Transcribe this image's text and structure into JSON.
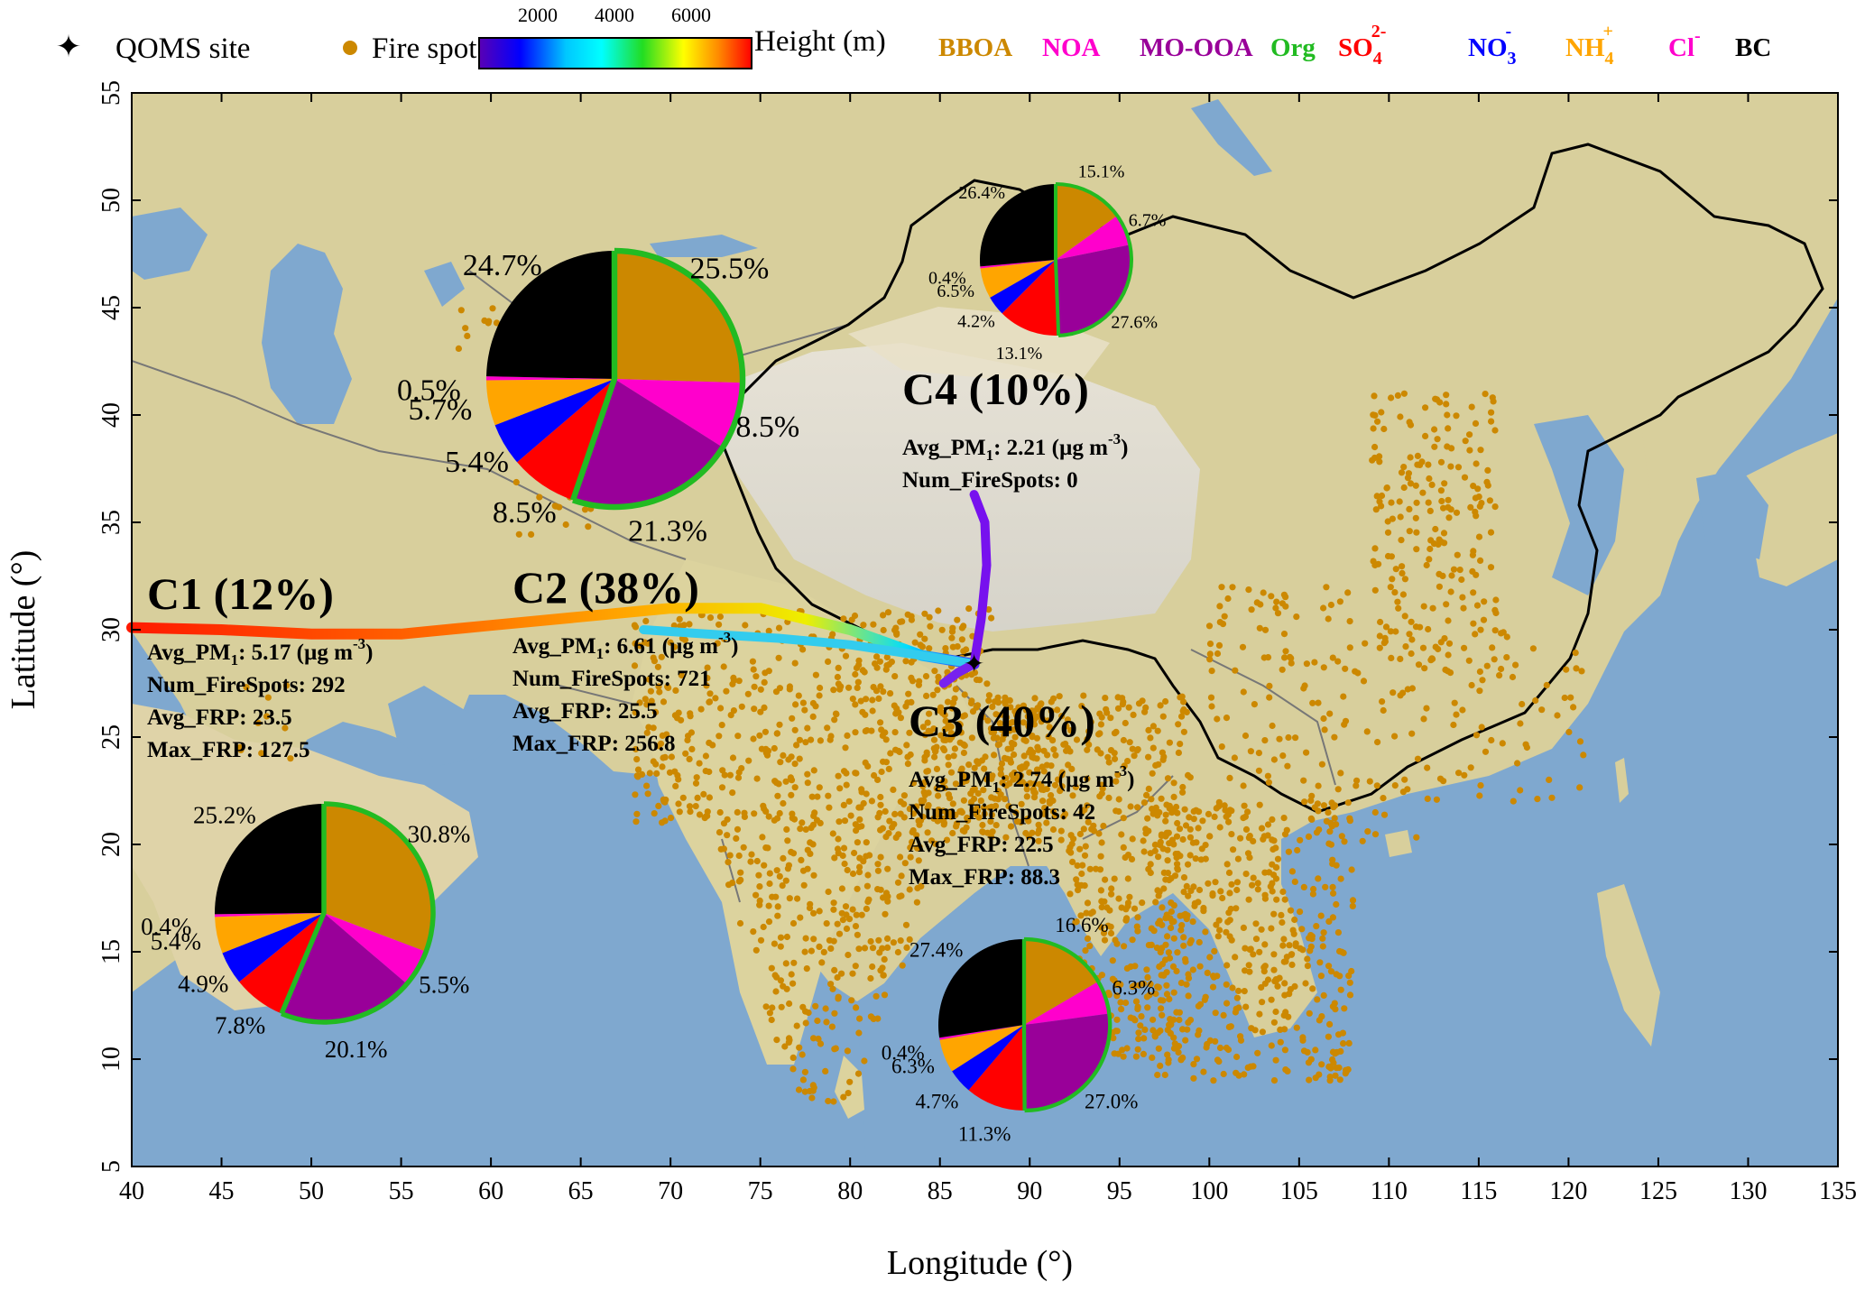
{
  "legend": {
    "site_label": "QOMS site",
    "fire_label": "Fire spot",
    "colorbar_ticks": [
      "2000",
      "4000",
      "6000"
    ],
    "colorbar_title": "Height (m)",
    "species": [
      {
        "label": "BBOA",
        "sup": "",
        "sub": "",
        "color": "#CC8800"
      },
      {
        "label": "NOA",
        "sup": "",
        "sub": "",
        "color": "#FF00CC"
      },
      {
        "label": "MO-OOA",
        "sup": "",
        "sub": "",
        "color": "#990099"
      },
      {
        "label": "Org",
        "sup": "",
        "sub": "",
        "color": "#22BB22"
      },
      {
        "label": "SO",
        "sub": "4",
        "sup": "2-",
        "color": "#FF0000"
      },
      {
        "label": "NO",
        "sub": "3",
        "sup": "-",
        "color": "#0000FF"
      },
      {
        "label": "NH",
        "sub": "4",
        "sup": "+",
        "color": "#FFA500"
      },
      {
        "label": "Cl",
        "sub": "",
        "sup": "-",
        "color": "#FF00CC"
      },
      {
        "label": "BC",
        "sub": "",
        "sup": "",
        "color": "#000000"
      }
    ]
  },
  "axes": {
    "xlabel": "Longitude (°)",
    "ylabel": "Latitude (°)",
    "xlim": [
      40,
      135
    ],
    "ylim": [
      5,
      55
    ],
    "xticks": [
      40,
      45,
      50,
      55,
      60,
      65,
      70,
      75,
      80,
      85,
      90,
      95,
      100,
      105,
      110,
      115,
      120,
      125,
      130,
      135
    ],
    "yticks": [
      5,
      10,
      15,
      20,
      25,
      30,
      35,
      40,
      45,
      50,
      55
    ]
  },
  "site": {
    "lon": 86.9,
    "lat": 28.4
  },
  "clusters": [
    {
      "name": "C1 (12%)",
      "avg_pm1": "5.17 (µg m",
      "stats": [
        "Num_FireSpots: 292",
        "Avg_FRP: 23.5",
        "Max_FRP: 127.5"
      ],
      "trajectory": [
        [
          40,
          30.1
        ],
        [
          45,
          30.0
        ],
        [
          50,
          29.8
        ],
        [
          55,
          29.8
        ],
        [
          60,
          30.2
        ],
        [
          65,
          30.6
        ],
        [
          70,
          31.0
        ],
        [
          75,
          31.0
        ],
        [
          80,
          30.0
        ],
        [
          84,
          28.8
        ],
        [
          86.9,
          28.4
        ]
      ]
    },
    {
      "name": "C2 (38%)",
      "avg_pm1": "6.61 (µg m",
      "stats": [
        "Num_FireSpots: 721",
        "Avg_FRP: 25.5",
        "Max_FRP: 256.8"
      ],
      "trajectory": [
        [
          68.5,
          30.0
        ],
        [
          72,
          29.8
        ],
        [
          76,
          29.6
        ],
        [
          80,
          29.3
        ],
        [
          84,
          28.8
        ],
        [
          86.9,
          28.4
        ]
      ]
    },
    {
      "name": "C3 (40%)",
      "avg_pm1": "2.74 (µg m",
      "stats": [
        "Num_FireSpots: 42",
        "Avg_FRP: 22.5",
        "Max_FRP: 88.3"
      ],
      "trajectory": [
        [
          85.2,
          27.5
        ],
        [
          86,
          28.0
        ],
        [
          86.9,
          28.4
        ]
      ]
    },
    {
      "name": "C4 (10%)",
      "avg_pm1": "2.21 (µg m",
      "stats": [
        "Num_FireSpots: 0"
      ],
      "trajectory": [
        [
          86.9,
          36.3
        ],
        [
          87.5,
          35.0
        ],
        [
          87.6,
          33.0
        ],
        [
          87.3,
          30.5
        ],
        [
          86.9,
          28.4
        ]
      ]
    }
  ],
  "chart_data": {
    "type": "pie",
    "order": [
      "BBOA",
      "NOA",
      "MO-OOA",
      "SO4",
      "NO3",
      "NH4",
      "Cl",
      "BC"
    ],
    "pies": [
      {
        "cluster": "C1",
        "values": [
          30.8,
          5.5,
          20.1,
          7.8,
          4.9,
          5.4,
          0.4,
          25.2
        ],
        "labels": [
          "30.8%",
          "5.5%",
          "20.1%",
          "7.8%",
          "4.9%",
          "5.4%",
          "0.4%",
          "25.2%"
        ]
      },
      {
        "cluster": "C2",
        "values": [
          25.5,
          8.5,
          21.3,
          8.5,
          5.4,
          5.7,
          0.5,
          24.7
        ],
        "labels": [
          "25.5%",
          "8.5%",
          "21.3%",
          "8.5%",
          "5.4%",
          "5.7%",
          "0.5%",
          "24.7%"
        ]
      },
      {
        "cluster": "C3",
        "values": [
          16.6,
          6.3,
          27.0,
          11.3,
          4.7,
          6.3,
          0.4,
          27.4
        ],
        "labels": [
          "16.6%",
          "6.3%",
          "27.0%",
          "11.3%",
          "4.7%",
          "6.3%",
          "0.4%",
          "27.4%"
        ]
      },
      {
        "cluster": "C4",
        "values": [
          15.1,
          6.7,
          27.6,
          13.1,
          4.2,
          6.5,
          0.4,
          26.4
        ],
        "labels": [
          "15.1%",
          "6.7%",
          "27.6%",
          "13.1%",
          "4.2%",
          "6.5%",
          "0.4%",
          "26.4%"
        ]
      }
    ],
    "colors": {
      "BBOA": "#CC8800",
      "NOA": "#FF00CC",
      "MO-OOA": "#990099",
      "Org": "#22BB22",
      "SO4": "#FF0000",
      "NO3": "#0000FF",
      "NH4": "#FFA500",
      "Cl": "#FF00CC",
      "BC": "#000000"
    }
  }
}
